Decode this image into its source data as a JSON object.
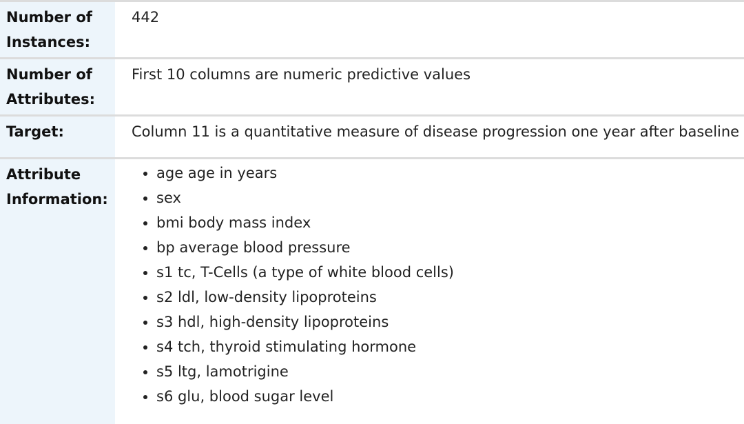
{
  "fields": [
    {
      "label": "Number of Instances:",
      "value": "442"
    },
    {
      "label": "Number of Attributes:",
      "value": "First 10 columns are numeric predictive values"
    },
    {
      "label": "Target:",
      "value": "Column 11 is a quantitative measure of disease progression one year after baseline"
    }
  ],
  "attribute_information": {
    "label": "Attribute Information:",
    "items": [
      "age age in years",
      "sex",
      "bmi body mass index",
      "bp average blood pressure",
      "s1 tc, T-Cells (a type of white blood cells)",
      "s2 ldl, low-density lipoproteins",
      "s3 hdl, high-density lipoproteins",
      "s4 tch, thyroid stimulating hormone",
      "s5 ltg, lamotrigine",
      "s6 glu, blood sugar level"
    ]
  },
  "colors": {
    "header_background": "#edf5fb",
    "row_border": "#dcdcdc",
    "text": "#212529"
  }
}
